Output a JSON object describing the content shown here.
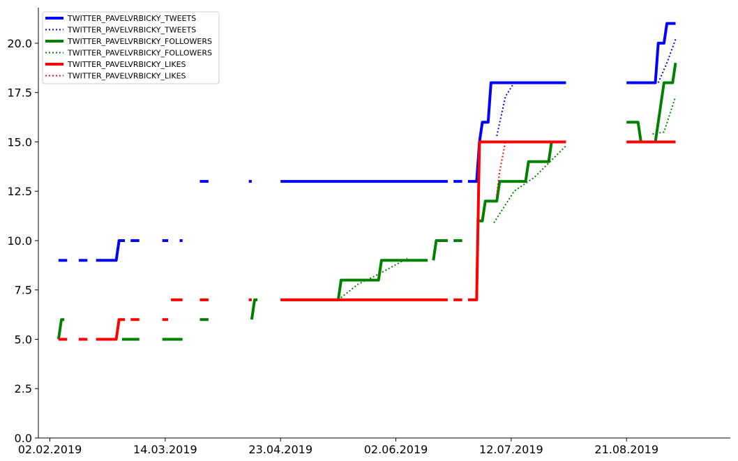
{
  "chart_data": {
    "type": "line",
    "title": "",
    "xlabel": "",
    "ylabel": "",
    "x_axis": {
      "type": "date",
      "range": [
        "2019-01-29",
        "2019-09-26"
      ],
      "ticks": [
        "2019-02-02",
        "2019-03-14",
        "2019-04-23",
        "2019-06-02",
        "2019-07-12",
        "2019-08-21"
      ],
      "tick_labels": [
        "02.02.2019",
        "14.03.2019",
        "23.04.2019",
        "02.06.2019",
        "12.07.2019",
        "21.08.2019"
      ]
    },
    "y_axis": {
      "range": [
        0,
        21.8
      ],
      "ticks": [
        0.0,
        2.5,
        5.0,
        7.5,
        10.0,
        12.5,
        15.0,
        17.5,
        20.0
      ],
      "tick_labels": [
        "0.0",
        "2.5",
        "5.0",
        "7.5",
        "10.0",
        "12.5",
        "15.0",
        "17.5",
        "20.0"
      ]
    },
    "grid": false,
    "legend_position": "top-left",
    "series": [
      {
        "name": "TWITTER_PAVELVRBICKY_TWEETS",
        "style": "solid",
        "color": "#0000ff",
        "segments": [
          [
            [
              "2019-02-05",
              9
            ],
            [
              "2019-02-08",
              9
            ]
          ],
          [
            [
              "2019-02-12",
              9
            ],
            [
              "2019-02-15",
              9
            ]
          ],
          [
            [
              "2019-02-18",
              9
            ],
            [
              "2019-02-25",
              9
            ],
            [
              "2019-02-26",
              10
            ],
            [
              "2019-02-28",
              10
            ]
          ],
          [
            [
              "2019-03-02",
              10
            ],
            [
              "2019-03-05",
              10
            ]
          ],
          [
            [
              "2019-03-13",
              10
            ],
            [
              "2019-03-15",
              10
            ]
          ],
          [
            [
              "2019-03-19",
              10
            ],
            [
              "2019-03-20",
              10
            ]
          ],
          [
            [
              "2019-03-26",
              13
            ],
            [
              "2019-03-29",
              13
            ]
          ],
          [
            [
              "2019-04-12",
              13
            ],
            [
              "2019-04-13",
              13
            ]
          ],
          [
            [
              "2019-04-23",
              13
            ],
            [
              "2019-06-20",
              13
            ]
          ],
          [
            [
              "2019-06-22",
              13
            ],
            [
              "2019-06-25",
              13
            ]
          ],
          [
            [
              "2019-06-27",
              13
            ],
            [
              "2019-06-30",
              13
            ],
            [
              "2019-07-01",
              15
            ],
            [
              "2019-07-02",
              16
            ],
            [
              "2019-07-04",
              16
            ],
            [
              "2019-07-05",
              18
            ],
            [
              "2019-07-31",
              18
            ]
          ],
          [
            [
              "2019-08-21",
              18
            ],
            [
              "2019-08-31",
              18
            ],
            [
              "2019-09-01",
              20
            ],
            [
              "2019-09-03",
              20
            ],
            [
              "2019-09-04",
              21
            ],
            [
              "2019-09-07",
              21
            ]
          ]
        ]
      },
      {
        "name": "TWITTER_PAVELVRBICKY_TWEETS",
        "style": "dotted",
        "color": "#0000ff",
        "segments": [
          [
            [
              "2019-07-07",
              15.3
            ],
            [
              "2019-07-10",
              17.3
            ],
            [
              "2019-07-13",
              18
            ]
          ],
          [
            [
              "2019-09-01",
              18
            ],
            [
              "2019-09-04",
              19
            ],
            [
              "2019-09-07",
              20.2
            ]
          ]
        ]
      },
      {
        "name": "TWITTER_PAVELVRBICKY_FOLLOWERS",
        "style": "solid",
        "color": "#008000",
        "segments": [
          [
            [
              "2019-02-05",
              5
            ],
            [
              "2019-02-06",
              6
            ],
            [
              "2019-02-07",
              6
            ]
          ],
          [
            [
              "2019-02-27",
              5
            ],
            [
              "2019-03-05",
              5
            ]
          ],
          [
            [
              "2019-03-13",
              5
            ],
            [
              "2019-03-20",
              5
            ]
          ],
          [
            [
              "2019-03-26",
              6
            ],
            [
              "2019-03-29",
              6
            ]
          ],
          [
            [
              "2019-04-13",
              6
            ],
            [
              "2019-04-14",
              7
            ],
            [
              "2019-04-15",
              7
            ]
          ],
          [
            [
              "2019-04-23",
              7
            ],
            [
              "2019-05-13",
              7
            ],
            [
              "2019-05-14",
              8
            ],
            [
              "2019-05-27",
              8
            ],
            [
              "2019-05-28",
              9
            ],
            [
              "2019-06-13",
              9
            ]
          ],
          [
            [
              "2019-06-15",
              9
            ],
            [
              "2019-06-16",
              10
            ],
            [
              "2019-06-20",
              10
            ]
          ],
          [
            [
              "2019-06-22",
              10
            ],
            [
              "2019-06-25",
              10
            ]
          ],
          [
            [
              "2019-06-30",
              11
            ],
            [
              "2019-07-02",
              11
            ],
            [
              "2019-07-03",
              12
            ],
            [
              "2019-07-07",
              12
            ],
            [
              "2019-07-08",
              13
            ],
            [
              "2019-07-17",
              13
            ],
            [
              "2019-07-18",
              14
            ],
            [
              "2019-07-25",
              14
            ],
            [
              "2019-07-26",
              15
            ],
            [
              "2019-07-31",
              15
            ]
          ],
          [
            [
              "2019-08-21",
              16
            ],
            [
              "2019-08-25",
              16
            ],
            [
              "2019-08-26",
              15
            ],
            [
              "2019-08-31",
              15
            ],
            [
              "2019-09-01",
              16
            ],
            [
              "2019-09-02",
              17
            ],
            [
              "2019-09-03",
              18
            ],
            [
              "2019-09-06",
              18
            ],
            [
              "2019-09-07",
              19
            ]
          ]
        ]
      },
      {
        "name": "TWITTER_PAVELVRBICKY_FOLLOWERS",
        "style": "dotted",
        "color": "#008000",
        "segments": [
          [
            [
              "2019-05-13",
              7
            ],
            [
              "2019-05-20",
              7.8
            ],
            [
              "2019-05-27",
              8.3
            ],
            [
              "2019-06-06",
              9.1
            ]
          ],
          [
            [
              "2019-07-06",
              10.9
            ],
            [
              "2019-07-13",
              12.5
            ],
            [
              "2019-07-20",
              13.2
            ],
            [
              "2019-07-31",
              14.8
            ]
          ],
          [
            [
              "2019-08-30",
              15.4
            ],
            [
              "2019-09-03",
              15.5
            ],
            [
              "2019-09-07",
              17.3
            ]
          ]
        ]
      },
      {
        "name": "TWITTER_PAVELVRBICKY_LIKES",
        "style": "solid",
        "color": "#ff0000",
        "segments": [
          [
            [
              "2019-02-05",
              5
            ],
            [
              "2019-02-08",
              5
            ]
          ],
          [
            [
              "2019-02-12",
              5
            ],
            [
              "2019-02-15",
              5
            ]
          ],
          [
            [
              "2019-02-18",
              5
            ],
            [
              "2019-02-25",
              5
            ],
            [
              "2019-02-26",
              6
            ],
            [
              "2019-02-28",
              6
            ]
          ],
          [
            [
              "2019-03-02",
              6
            ],
            [
              "2019-03-05",
              6
            ]
          ],
          [
            [
              "2019-03-13",
              6
            ],
            [
              "2019-03-15",
              6
            ]
          ],
          [
            [
              "2019-03-16",
              7
            ],
            [
              "2019-03-20",
              7
            ]
          ],
          [
            [
              "2019-03-26",
              7
            ],
            [
              "2019-03-29",
              7
            ]
          ],
          [
            [
              "2019-04-12",
              7
            ],
            [
              "2019-04-13",
              7
            ]
          ],
          [
            [
              "2019-04-23",
              7
            ],
            [
              "2019-06-20",
              7
            ]
          ],
          [
            [
              "2019-06-22",
              7
            ],
            [
              "2019-06-25",
              7
            ]
          ],
          [
            [
              "2019-06-27",
              7
            ],
            [
              "2019-06-30",
              7
            ],
            [
              "2019-07-01",
              15
            ],
            [
              "2019-07-31",
              15
            ]
          ],
          [
            [
              "2019-08-21",
              15
            ],
            [
              "2019-09-07",
              15
            ]
          ]
        ]
      },
      {
        "name": "TWITTER_PAVELVRBICKY_LIKES",
        "style": "dotted",
        "color": "#ff0000",
        "segments": [
          [
            [
              "2019-07-07",
              12.3
            ],
            [
              "2019-07-08",
              13.5
            ],
            [
              "2019-07-10",
              15
            ]
          ]
        ]
      }
    ]
  }
}
